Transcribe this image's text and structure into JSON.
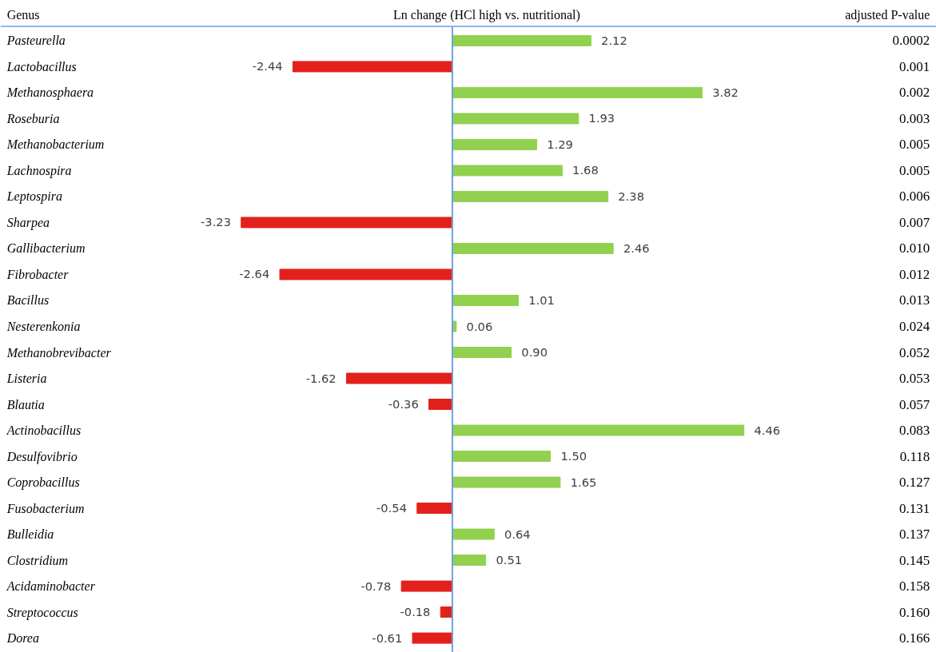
{
  "chart_data": {
    "type": "bar",
    "orientation": "horizontal",
    "title": "Ln change (HCl  high vs. nutritional)",
    "annotations": [
      "Genus",
      "adjusted P-value"
    ],
    "categories": [
      "Pasteurella",
      "Lactobacillus",
      "Methanosphaera",
      "Roseburia",
      "Methanobacterium",
      "Lachnospira",
      "Leptospira",
      "Sharpea",
      "Gallibacterium",
      "Fibrobacter",
      "Bacillus",
      "Nesterenkonia",
      "Methanobrevibacter",
      "Listeria",
      "Blautia",
      "Actinobacillus",
      "Desulfovibrio",
      "Coprobacillus",
      "Fusobacterium",
      "Bulleidia",
      "Clostridium",
      "Acidaminobacter",
      "Streptococcus",
      "Dorea"
    ],
    "y2_categories": [
      "0.0002",
      "0.001",
      "0.002",
      "0.003",
      "0.005",
      "0.005",
      "0.006",
      "0.007",
      "0.010",
      "0.012",
      "0.013",
      "0.024",
      "0.052",
      "0.053",
      "0.057",
      "0.083",
      "0.118",
      "0.127",
      "0.131",
      "0.137",
      "0.145",
      "0.158",
      "0.160",
      "0.166"
    ],
    "values": [
      2.12,
      -2.44,
      3.82,
      1.93,
      1.29,
      1.68,
      2.38,
      -3.23,
      2.46,
      -2.64,
      1.01,
      0.06,
      0.9,
      -1.62,
      -0.36,
      4.46,
      1.5,
      1.65,
      -0.54,
      0.64,
      0.51,
      -0.78,
      -0.18,
      -0.61
    ],
    "value_labels": [
      "2.12",
      "-2.44",
      "3.82",
      "1.93",
      "1.29",
      "1.68",
      "2.38",
      "-3.23",
      "2.46",
      "-2.64",
      "1.01",
      "0.06",
      "0.90",
      "-1.62",
      "-0.36",
      "4.46",
      "1.50",
      "1.65",
      "-0.54",
      "0.64",
      "0.51",
      "-0.78",
      "-0.18",
      "-0.61"
    ],
    "colors": [
      "#92d050",
      "#e3211c",
      "#92d050",
      "#92d050",
      "#92d050",
      "#92d050",
      "#92d050",
      "#e3211c",
      "#92d050",
      "#e3211c",
      "#92d050",
      "#92d050",
      "#92d050",
      "#e3211c",
      "#e3211c",
      "#92d050",
      "#92d050",
      "#92d050",
      "#e3211c",
      "#92d050",
      "#92d050",
      "#e3211c",
      "#e3211c",
      "#e3211c"
    ],
    "ref_lines": [
      {
        "axis": "x",
        "value": 0,
        "color": "#6fa0dc"
      }
    ],
    "tick_labels": "y",
    "grid": false
  }
}
